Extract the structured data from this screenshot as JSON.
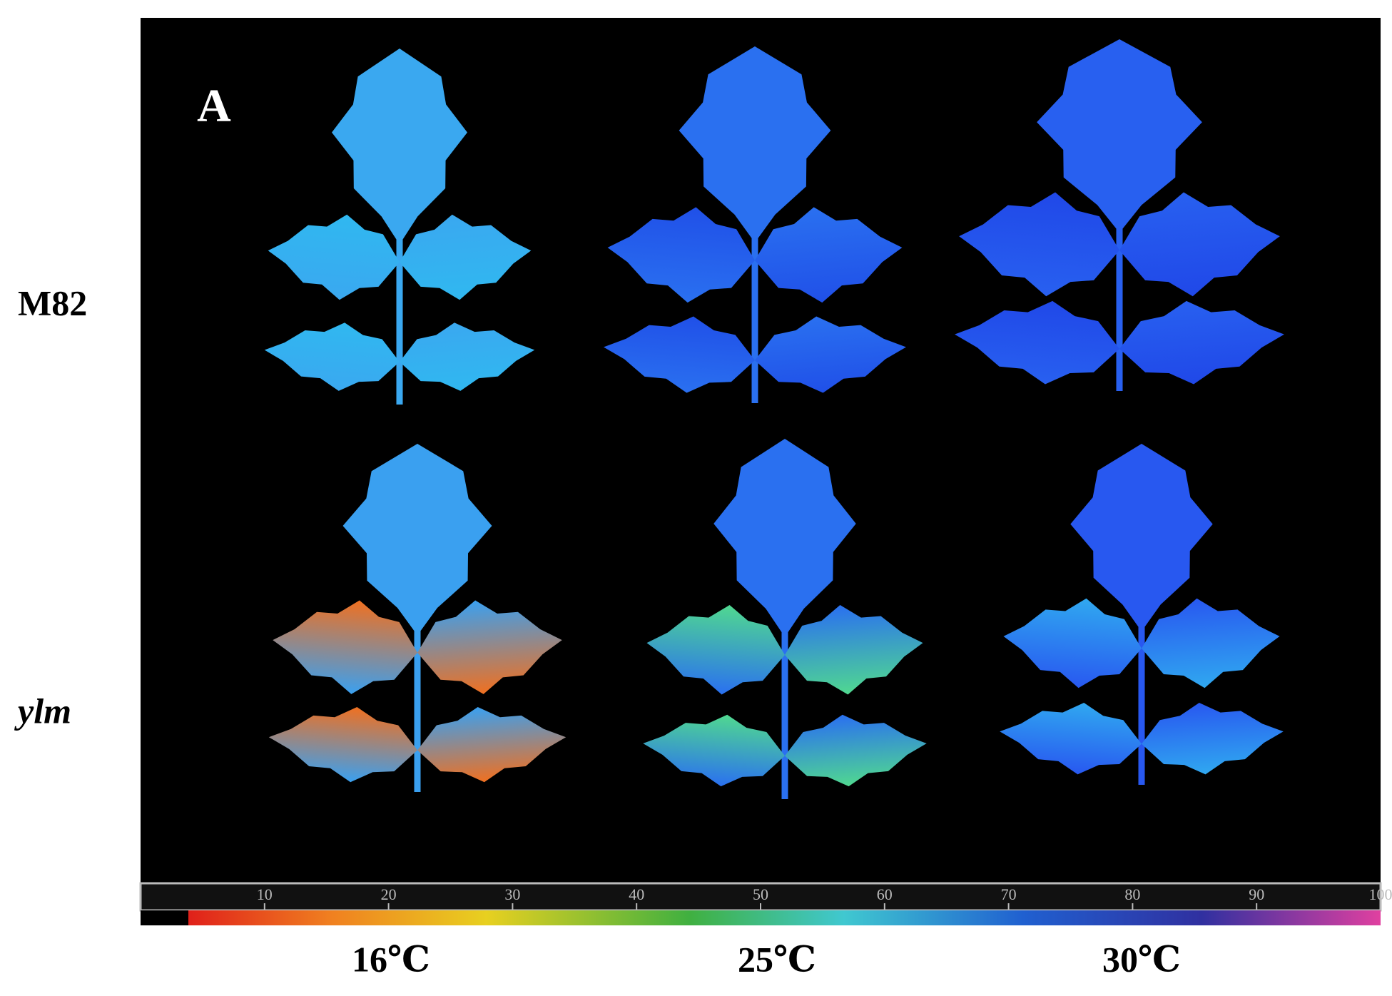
{
  "panel_label": "A",
  "row_labels": [
    "M82",
    "ylm"
  ],
  "column_labels": [
    "16℃",
    "25℃",
    "30℃"
  ],
  "colorbar": {
    "range": [
      0,
      100
    ],
    "ticks": [
      10,
      20,
      30,
      40,
      50,
      60,
      70,
      80,
      90,
      100
    ]
  }
}
